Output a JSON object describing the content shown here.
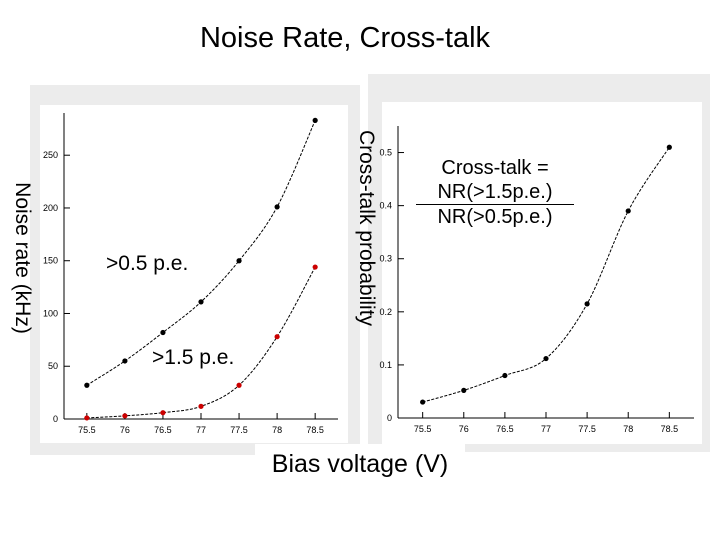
{
  "slide": {
    "title": "Noise Rate, Cross-talk",
    "xlabel": "Bias voltage (V)",
    "left_ylabel": "Noise rate (kHz)",
    "right_ylabel": "Cross-talk probability",
    "label_05": ">0.5 p.e.",
    "label_15": ">1.5 p.e.",
    "formula_lhs": "Cross-talk =",
    "formula_num": "NR(>1.5p.e.)",
    "formula_den": "NR(>0.5p.e.)"
  },
  "chart_data": [
    {
      "type": "line",
      "x": [
        75.5,
        76,
        76.5,
        77,
        77.5,
        78,
        78.5
      ],
      "xlim": [
        75.2,
        78.8
      ],
      "ylim": [
        0,
        290
      ],
      "xticks": [
        "75.5",
        "76",
        "76.5",
        "77",
        "77.5",
        "78",
        "78.5"
      ],
      "yticks": [
        "0",
        "50",
        "100",
        "150",
        "200",
        "250"
      ],
      "ylabel": "Noise rate (kHz)",
      "series": [
        {
          "name": ">0.5 p.e.",
          "color": "#000000",
          "values": [
            32,
            55,
            82,
            111,
            150,
            201,
            283
          ]
        },
        {
          "name": ">1.5 p.e.",
          "color": "#cc0000",
          "values": [
            1,
            3,
            6,
            12,
            32,
            78,
            144
          ]
        }
      ]
    },
    {
      "type": "line",
      "x": [
        75.5,
        76,
        76.5,
        77,
        77.5,
        78,
        78.5
      ],
      "xlim": [
        75.2,
        78.8
      ],
      "ylim": [
        0,
        0.55
      ],
      "xticks": [
        "75.5",
        "76",
        "76.5",
        "77",
        "77.5",
        "78",
        "78.5"
      ],
      "yticks": [
        "0",
        "0.1",
        "0.2",
        "0.3",
        "0.4",
        "0.5"
      ],
      "ylabel": "Cross-talk probability",
      "series": [
        {
          "name": "Cross-talk",
          "color": "#000000",
          "values": [
            0.03,
            0.052,
            0.08,
            0.112,
            0.215,
            0.39,
            0.51
          ]
        }
      ]
    }
  ]
}
